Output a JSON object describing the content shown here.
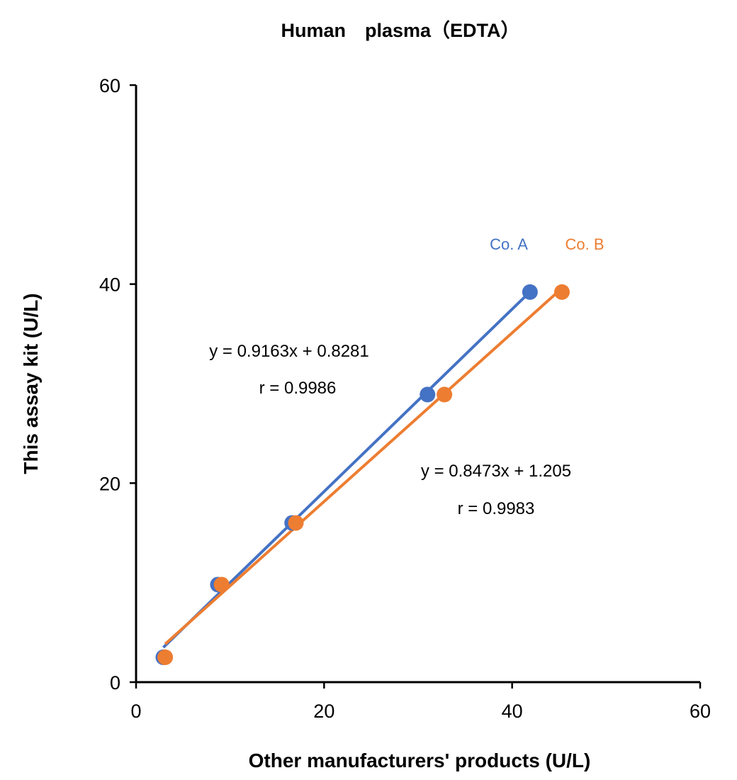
{
  "chart_data": {
    "type": "scatter",
    "title": "Human　plasma（EDTA）",
    "xlabel": "Other manufacturers' products (U/L)",
    "ylabel": "This assay kit (U/L)",
    "xlim": [
      0,
      60
    ],
    "ylim": [
      0,
      60
    ],
    "xticks": [
      "0",
      "20",
      "40",
      "60"
    ],
    "yticks": [
      "0",
      "20",
      "40",
      "60"
    ],
    "grid": false,
    "series": [
      {
        "name": "Co. A",
        "color": "#4472C4",
        "x": [
          2.9,
          8.7,
          16.6,
          31.0,
          41.9
        ],
        "y": [
          2.5,
          9.8,
          16.0,
          28.9,
          39.2
        ],
        "trendline": {
          "slope": 0.9163,
          "intercept": 0.8281
        },
        "equation": "y = 0.9163x + 0.8281",
        "r_label": "r = 0.9986"
      },
      {
        "name": "Co. B",
        "color": "#ED7D31",
        "x": [
          3.1,
          9.1,
          17.0,
          32.8,
          45.3
        ],
        "y": [
          2.5,
          9.8,
          16.0,
          28.9,
          39.2
        ],
        "trendline": {
          "slope": 0.8473,
          "intercept": 1.205
        },
        "equation": "y = 0.8473x + 1.205",
        "r_label": "r = 0.9983"
      }
    ]
  }
}
